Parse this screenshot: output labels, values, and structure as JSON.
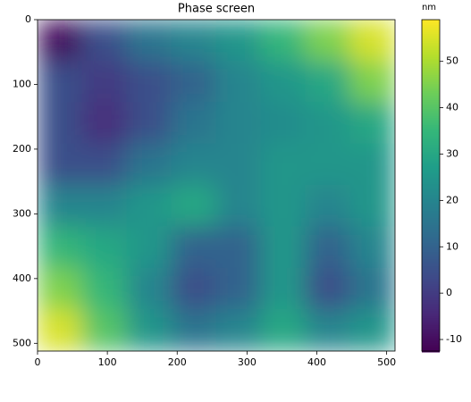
{
  "chart_data": {
    "type": "heatmap",
    "title": "Phase screen",
    "colorbar_label": "nm",
    "colormap": "viridis",
    "xlim": [
      0,
      512
    ],
    "ylim": [
      512,
      0
    ],
    "xticks": [
      0,
      100,
      200,
      300,
      400,
      500
    ],
    "yticks": [
      0,
      100,
      200,
      300,
      400,
      500
    ],
    "zlim": [
      -12.5,
      59
    ],
    "zticks": [
      -10,
      0,
      10,
      20,
      30,
      40,
      50
    ],
    "z": [
      [
        -10,
        5,
        15,
        20,
        25,
        35,
        45,
        55
      ],
      [
        5,
        0,
        5,
        10,
        20,
        25,
        30,
        45
      ],
      [
        5,
        -3,
        5,
        15,
        20,
        22,
        25,
        30
      ],
      [
        5,
        5,
        15,
        20,
        20,
        25,
        25,
        25
      ],
      [
        20,
        20,
        25,
        30,
        20,
        25,
        20,
        25
      ],
      [
        35,
        30,
        25,
        10,
        10,
        25,
        10,
        20
      ],
      [
        45,
        35,
        20,
        5,
        10,
        25,
        5,
        15
      ],
      [
        55,
        40,
        25,
        15,
        20,
        30,
        20,
        25
      ]
    ]
  }
}
